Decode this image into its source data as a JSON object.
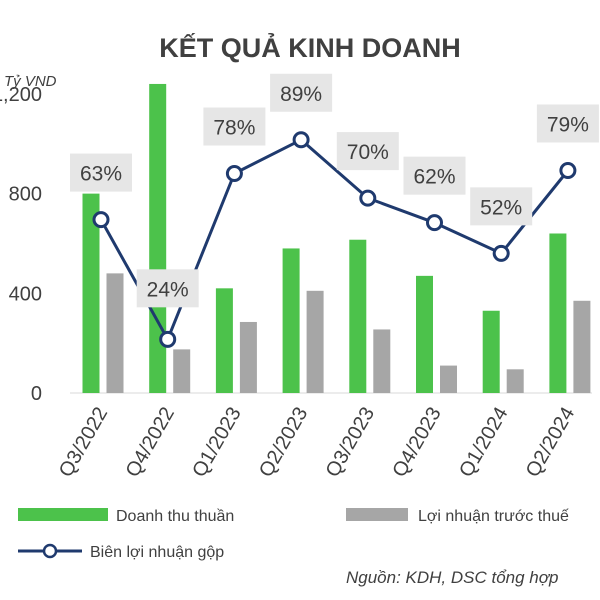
{
  "chart_data": {
    "type": "bar",
    "title": "KẾT QUẢ KINH DOANH",
    "unit_label": "Tỷ VND",
    "categories": [
      "Q3/2022",
      "Q4/2022",
      "Q1/2023",
      "Q2/2023",
      "Q3/2023",
      "Q4/2023",
      "Q1/2024",
      "Q2/2024"
    ],
    "y_ticks": [
      "0",
      "400",
      "800",
      "1,200"
    ],
    "y_tick_values": [
      0,
      400,
      800,
      1200
    ],
    "ylim": [
      0,
      1300
    ],
    "series": [
      {
        "name": "Doanh thu thuần",
        "kind": "bar",
        "color": "#4CC24B",
        "values": [
          800,
          1240,
          420,
          580,
          615,
          470,
          330,
          640
        ]
      },
      {
        "name": "Lợi nhuận trước thuế",
        "kind": "bar",
        "color": "#A6A6A6",
        "values": [
          480,
          175,
          285,
          410,
          255,
          110,
          95,
          370
        ]
      },
      {
        "name": "Biên lợi nhuận gộp",
        "kind": "line",
        "color": "#1F3A6E",
        "axis": "secondary",
        "values": [
          63,
          24,
          78,
          89,
          70,
          62,
          52,
          79
        ],
        "labels": [
          "63%",
          "24%",
          "78%",
          "89%",
          "70%",
          "62%",
          "52%",
          "79%"
        ]
      }
    ],
    "y2lim": [
      0,
      100
    ],
    "grid": false,
    "legend_position": "bottom",
    "source": "Nguồn: KDH, DSC tổng hợp"
  }
}
